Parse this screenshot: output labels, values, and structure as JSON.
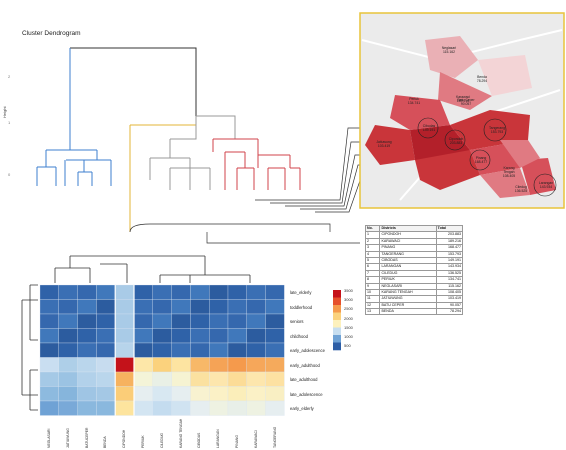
{
  "dendrogram": {
    "title": "Cluster Dendrogram",
    "ylabel": "Height",
    "yticks": [
      "2",
      "1",
      "0"
    ],
    "leaf_labels": [
      "",
      "",
      "",
      "",
      "",
      "",
      "",
      "",
      "",
      "",
      "",
      "",
      "",
      "",
      ""
    ],
    "colors": {
      "blue": "#3d7fcf",
      "yellow": "#e3b437",
      "red": "#d0434b",
      "black": "#333333",
      "gray": "#999999"
    }
  },
  "table": {
    "headers": [
      "No.",
      "Districts",
      "Total"
    ],
    "rows": [
      [
        "1",
        "CIPONDOH",
        "203.883"
      ],
      [
        "2",
        "KARAWACI",
        "189.216"
      ],
      [
        "3",
        "PINANG",
        "168.477"
      ],
      [
        "4",
        "TANGERANG",
        "153.793"
      ],
      [
        "5",
        "CIBODAS",
        "149.191"
      ],
      [
        "6",
        "LARANGAN",
        "143.934"
      ],
      [
        "7",
        "CILEDUG",
        "136.525"
      ],
      [
        "8",
        "PERIUK",
        "134.741"
      ],
      [
        "9",
        "NEGLASARI",
        "115.162"
      ],
      [
        "10",
        "KARANG TENGAH",
        "108.405"
      ],
      [
        "11",
        "JATIUWUNG",
        "103.419"
      ],
      [
        "12",
        "BATU CEPER",
        "90.057"
      ],
      [
        "13",
        "BENDA",
        "78.294"
      ]
    ]
  },
  "heatmap": {
    "rows": [
      "late_elderly",
      "toddlerhood",
      "seniors",
      "childhood",
      "early_adolescence",
      "early_adulthood",
      "late_adulthood",
      "late_adolescence",
      "early_elderly"
    ],
    "columns": [
      "NEGLASARI",
      "JATIUWUNG",
      "BATUCEPER",
      "BENDA",
      "CIPONDOH",
      "PERIUK",
      "CILEDUG",
      "KARANG TENGAH",
      "CIBODAS",
      "LARANGAN",
      "PINANG",
      "KARAWACI",
      "TANGERANG"
    ],
    "legend_ticks": [
      "3500",
      "3000",
      "2500",
      "2000",
      "1500",
      "1000",
      "500"
    ],
    "legend_colors": [
      "#c6121a",
      "#e6502c",
      "#f59a4c",
      "#fbd27d",
      "#fdf1bd",
      "#c7def0",
      "#6fa2d5",
      "#2d5ea6"
    ]
  },
  "map": {
    "labels": [
      {
        "text": "Benda\n78.294"
      },
      {
        "text": "Neglasari\n115.162"
      },
      {
        "text": "Batu Ceper\n90.057"
      },
      {
        "text": "Periuk\n134.741"
      },
      {
        "text": "Jatiuwung\n103.419"
      },
      {
        "text": "Cibodas\n149.191"
      },
      {
        "text": "Tangerang\n153.793"
      },
      {
        "text": "Karawaci\n189.216"
      },
      {
        "text": "Cipondoh\n203.883"
      },
      {
        "text": "Pinang\n168.477"
      },
      {
        "text": "Karang Tengah\n108.405"
      },
      {
        "text": "Ciledug\n136.525"
      },
      {
        "text": "Larangan\n143.934"
      }
    ],
    "border_color": "#e8c43a",
    "palette": [
      "#b3202a",
      "#c9353a",
      "#d6505a",
      "#e07a82",
      "#eab0b5",
      "#f3d4d6"
    ]
  }
}
